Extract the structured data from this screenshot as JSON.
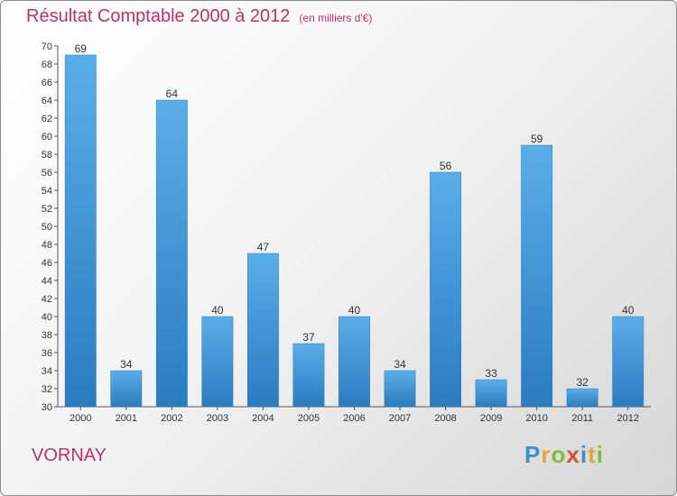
{
  "header": {
    "title": "Résultat Comptable 2000 à 2012",
    "subtitle": "(en milliers d'€)"
  },
  "footer": {
    "location": "VORNAY",
    "brand": "Proxiti"
  },
  "colors": {
    "title": "#b8336a",
    "bar_light": "#5aaee8",
    "bar_dark": "#2a7cc0"
  },
  "chart_data": {
    "type": "bar",
    "title": "Résultat Comptable 2000 à 2012",
    "subtitle": "(en milliers d'€)",
    "xlabel": "",
    "ylabel": "",
    "categories": [
      "2000",
      "2001",
      "2002",
      "2003",
      "2004",
      "2005",
      "2006",
      "2007",
      "2008",
      "2009",
      "2010",
      "2011",
      "2012"
    ],
    "values": [
      69,
      34,
      64,
      40,
      47,
      37,
      40,
      34,
      56,
      33,
      59,
      32,
      40
    ],
    "ylim": [
      30,
      70
    ],
    "ytick_step": 2,
    "grid": false
  }
}
